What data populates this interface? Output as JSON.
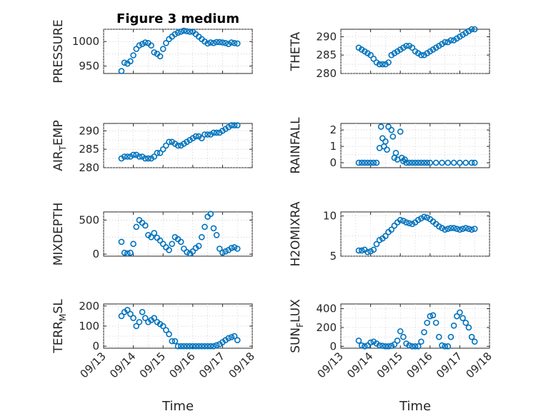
{
  "chart_data": [
    {
      "name": "pressure",
      "type": "scatter",
      "title": "Figure 3 medium",
      "xlabel": "",
      "ylabel": "PRESSURE",
      "ylim": [
        935,
        1025
      ],
      "yticks": [
        950,
        1000
      ],
      "xlim": [
        0,
        5
      ],
      "xticklabels": [],
      "x": [
        0.6,
        0.7,
        0.8,
        0.9,
        1.0,
        1.1,
        1.2,
        1.3,
        1.4,
        1.5,
        1.6,
        1.7,
        1.8,
        1.9,
        2.0,
        2.1,
        2.2,
        2.3,
        2.4,
        2.5,
        2.6,
        2.7,
        2.8,
        2.9,
        3.0,
        3.1,
        3.2,
        3.3,
        3.4,
        3.5,
        3.6,
        3.7,
        3.8,
        3.9,
        4.0,
        4.1,
        4.2,
        4.3,
        4.4,
        4.5
      ],
      "y": [
        940,
        957,
        955,
        960,
        972,
        985,
        992,
        995,
        998,
        997,
        992,
        978,
        975,
        970,
        985,
        997,
        1005,
        1010,
        1015,
        1018,
        1020,
        1022,
        1021,
        1020,
        1020,
        1015,
        1010,
        1005,
        1000,
        996,
        998,
        997,
        999,
        999,
        998,
        997,
        995,
        998,
        997,
        996
      ]
    },
    {
      "name": "theta",
      "type": "scatter",
      "title": "",
      "xlabel": "",
      "ylabel": "THETA",
      "ylim": [
        280,
        292
      ],
      "yticks": [
        280,
        285,
        290
      ],
      "xlim": [
        0,
        5
      ],
      "xticklabels": [],
      "x": [
        0.6,
        0.7,
        0.8,
        0.9,
        1.0,
        1.1,
        1.2,
        1.3,
        1.4,
        1.5,
        1.6,
        1.7,
        1.8,
        1.9,
        2.0,
        2.1,
        2.2,
        2.3,
        2.4,
        2.5,
        2.6,
        2.7,
        2.8,
        2.9,
        3.0,
        3.1,
        3.2,
        3.3,
        3.4,
        3.5,
        3.6,
        3.7,
        3.8,
        3.9,
        4.0,
        4.1,
        4.2,
        4.3,
        4.4,
        4.5
      ],
      "y": [
        287,
        286.5,
        286,
        285.5,
        285,
        284,
        283,
        282.5,
        282.5,
        282.5,
        283,
        285,
        285.5,
        286,
        286.5,
        287,
        287.5,
        287.5,
        287,
        286,
        285.5,
        285,
        285,
        285.5,
        286,
        286.5,
        287,
        287.5,
        288,
        288.5,
        288.5,
        289,
        289,
        289.5,
        290,
        290.5,
        291,
        291.5,
        292,
        292
      ]
    },
    {
      "name": "air-temp",
      "type": "scatter",
      "title": "",
      "xlabel": "",
      "ylabel": "AIR_TEMP",
      "ylim": [
        280,
        292
      ],
      "yticks": [
        280,
        285,
        290
      ],
      "xlim": [
        0,
        5
      ],
      "xticklabels": [],
      "x": [
        0.6,
        0.7,
        0.8,
        0.9,
        1.0,
        1.1,
        1.2,
        1.3,
        1.4,
        1.5,
        1.6,
        1.7,
        1.8,
        1.9,
        2.0,
        2.1,
        2.2,
        2.3,
        2.4,
        2.5,
        2.6,
        2.7,
        2.8,
        2.9,
        3.0,
        3.1,
        3.2,
        3.3,
        3.4,
        3.5,
        3.6,
        3.7,
        3.8,
        3.9,
        4.0,
        4.1,
        4.2,
        4.3,
        4.4,
        4.5
      ],
      "y": [
        282.5,
        283,
        283,
        283,
        283.5,
        283.5,
        283,
        283,
        282.5,
        282.5,
        282.5,
        283,
        284,
        284,
        285,
        286,
        287,
        287,
        286.5,
        286,
        286,
        286.5,
        287,
        287.5,
        288,
        288.5,
        288.5,
        288,
        289,
        289,
        289,
        289.5,
        289.5,
        289.5,
        290,
        290.5,
        291,
        291.5,
        291.5,
        291.5
      ]
    },
    {
      "name": "rainfall",
      "type": "scatter",
      "title": "",
      "xlabel": "",
      "ylabel": "RAINFALL",
      "ylim": [
        -0.3,
        2.4
      ],
      "yticks": [
        0,
        1,
        2
      ],
      "xlim": [
        0,
        5
      ],
      "xticklabels": [],
      "x": [
        0.6,
        0.7,
        0.8,
        0.9,
        1.0,
        1.1,
        1.2,
        1.3,
        1.35,
        1.4,
        1.45,
        1.5,
        1.55,
        1.6,
        1.7,
        1.75,
        1.8,
        1.85,
        1.9,
        2.0,
        2.05,
        2.1,
        2.15,
        2.2,
        2.3,
        2.4,
        2.5,
        2.6,
        2.7,
        2.8,
        2.9,
        3.0,
        3.2,
        3.4,
        3.6,
        3.8,
        4.0,
        4.2,
        4.4,
        4.5
      ],
      "y": [
        0,
        0,
        0,
        0,
        0,
        0,
        0,
        0.9,
        2.2,
        1.5,
        1.0,
        1.3,
        0.8,
        2.2,
        2.0,
        1.6,
        0.3,
        0.6,
        0.2,
        1.9,
        0.3,
        0.1,
        0.2,
        0,
        0,
        0,
        0,
        0,
        0,
        0,
        0,
        0,
        0,
        0,
        0,
        0,
        0,
        0,
        0,
        0
      ]
    },
    {
      "name": "mixdepth",
      "type": "scatter",
      "title": "",
      "xlabel": "",
      "ylabel": "MIXDEPTH",
      "ylim": [
        -30,
        620
      ],
      "yticks": [
        0,
        500
      ],
      "xlim": [
        0,
        5
      ],
      "xticklabels": [],
      "x": [
        0.6,
        0.7,
        0.8,
        0.9,
        1.0,
        1.1,
        1.2,
        1.3,
        1.4,
        1.5,
        1.6,
        1.7,
        1.8,
        1.9,
        2.0,
        2.1,
        2.2,
        2.3,
        2.4,
        2.5,
        2.6,
        2.7,
        2.8,
        2.9,
        3.0,
        3.1,
        3.2,
        3.3,
        3.4,
        3.5,
        3.6,
        3.7,
        3.8,
        3.9,
        4.0,
        4.1,
        4.2,
        4.3,
        4.4,
        4.5
      ],
      "y": [
        180,
        20,
        10,
        20,
        150,
        400,
        500,
        460,
        420,
        280,
        250,
        310,
        240,
        200,
        150,
        100,
        60,
        150,
        250,
        220,
        180,
        80,
        30,
        10,
        40,
        90,
        120,
        250,
        400,
        550,
        590,
        380,
        280,
        80,
        20,
        40,
        60,
        90,
        100,
        80
      ]
    },
    {
      "name": "h2omixra",
      "type": "scatter",
      "title": "",
      "xlabel": "",
      "ylabel": "H2OMIXRA",
      "ylim": [
        5,
        10.5
      ],
      "yticks": [
        5,
        10
      ],
      "xlim": [
        0,
        5
      ],
      "xticklabels": [],
      "x": [
        0.6,
        0.7,
        0.8,
        0.9,
        1.0,
        1.1,
        1.2,
        1.3,
        1.4,
        1.5,
        1.6,
        1.7,
        1.8,
        1.9,
        2.0,
        2.1,
        2.2,
        2.3,
        2.4,
        2.5,
        2.6,
        2.7,
        2.8,
        2.9,
        3.0,
        3.1,
        3.2,
        3.3,
        3.4,
        3.5,
        3.6,
        3.7,
        3.8,
        3.9,
        4.0,
        4.1,
        4.2,
        4.3,
        4.4,
        4.5
      ],
      "y": [
        5.7,
        5.7,
        5.8,
        5.5,
        5.6,
        5.8,
        6.5,
        7.0,
        7.2,
        7.5,
        8.0,
        8.3,
        8.8,
        9.2,
        9.5,
        9.4,
        9.2,
        9.1,
        9.0,
        9.2,
        9.5,
        9.7,
        9.9,
        9.8,
        9.6,
        9.3,
        9.0,
        8.7,
        8.5,
        8.3,
        8.4,
        8.5,
        8.5,
        8.4,
        8.3,
        8.4,
        8.5,
        8.4,
        8.3,
        8.4
      ]
    },
    {
      "name": "terr-msl",
      "type": "scatter",
      "title": "",
      "xlabel": "Time",
      "ylabel": "TERR_MSL",
      "ylim": [
        -10,
        210
      ],
      "yticks": [
        0,
        100,
        200
      ],
      "xlim": [
        0,
        5
      ],
      "xticklabels": [
        "09/13",
        "09/14",
        "09/15",
        "09/16",
        "09/17",
        "09/18"
      ],
      "x": [
        0.6,
        0.7,
        0.8,
        0.9,
        1.0,
        1.1,
        1.2,
        1.3,
        1.4,
        1.5,
        1.6,
        1.7,
        1.8,
        1.9,
        2.0,
        2.1,
        2.2,
        2.3,
        2.4,
        2.5,
        2.6,
        2.7,
        2.8,
        2.9,
        3.0,
        3.1,
        3.2,
        3.3,
        3.4,
        3.5,
        3.6,
        3.7,
        3.8,
        3.9,
        4.0,
        4.1,
        4.2,
        4.3,
        4.4,
        4.5
      ],
      "y": [
        150,
        170,
        180,
        160,
        140,
        100,
        120,
        170,
        140,
        120,
        130,
        140,
        120,
        110,
        100,
        80,
        60,
        25,
        25,
        0,
        0,
        0,
        0,
        0,
        0,
        0,
        0,
        0,
        0,
        0,
        0,
        0,
        5,
        10,
        20,
        30,
        40,
        45,
        50,
        30
      ]
    },
    {
      "name": "sun-flux",
      "type": "scatter",
      "title": "",
      "xlabel": "Time",
      "ylabel": "SUN_FLUX",
      "ylim": [
        -20,
        450
      ],
      "yticks": [
        0,
        200,
        400
      ],
      "xlim": [
        0,
        5
      ],
      "xticklabels": [
        "09/13",
        "09/14",
        "09/15",
        "09/16",
        "09/17",
        "09/18"
      ],
      "x": [
        0.6,
        0.7,
        0.8,
        0.9,
        1.0,
        1.1,
        1.2,
        1.3,
        1.4,
        1.5,
        1.6,
        1.7,
        1.8,
        1.9,
        2.0,
        2.1,
        2.2,
        2.3,
        2.4,
        2.5,
        2.6,
        2.7,
        2.8,
        2.9,
        3.0,
        3.1,
        3.2,
        3.3,
        3.4,
        3.5,
        3.6,
        3.7,
        3.8,
        3.9,
        4.0,
        4.1,
        4.2,
        4.3,
        4.4,
        4.5
      ],
      "y": [
        60,
        10,
        0,
        10,
        40,
        50,
        30,
        10,
        5,
        0,
        0,
        5,
        20,
        60,
        160,
        100,
        30,
        10,
        0,
        0,
        0,
        50,
        150,
        250,
        320,
        330,
        250,
        100,
        10,
        0,
        0,
        100,
        220,
        320,
        360,
        300,
        250,
        200,
        100,
        50
      ]
    }
  ],
  "subplot_labels": {
    "pressure": {
      "main": "PRESSURE"
    },
    "theta": {
      "main": "THETA"
    },
    "air-temp": {
      "main": "AIR",
      "sub": "T",
      "rest": "EMP"
    },
    "rainfall": {
      "main": "RAINFALL"
    },
    "mixdepth": {
      "main": "MIXDEPTH"
    },
    "h2omixra": {
      "main": "H2OMIXRA"
    },
    "terr-msl": {
      "main": "TERR",
      "sub": "M",
      "rest": "SL"
    },
    "sun-flux": {
      "main": "SUN",
      "sub": "F",
      "rest": "LUX"
    }
  },
  "colors": {
    "marker": "#0072BD",
    "axis": "#262626",
    "grid": "#c8c8c8"
  }
}
